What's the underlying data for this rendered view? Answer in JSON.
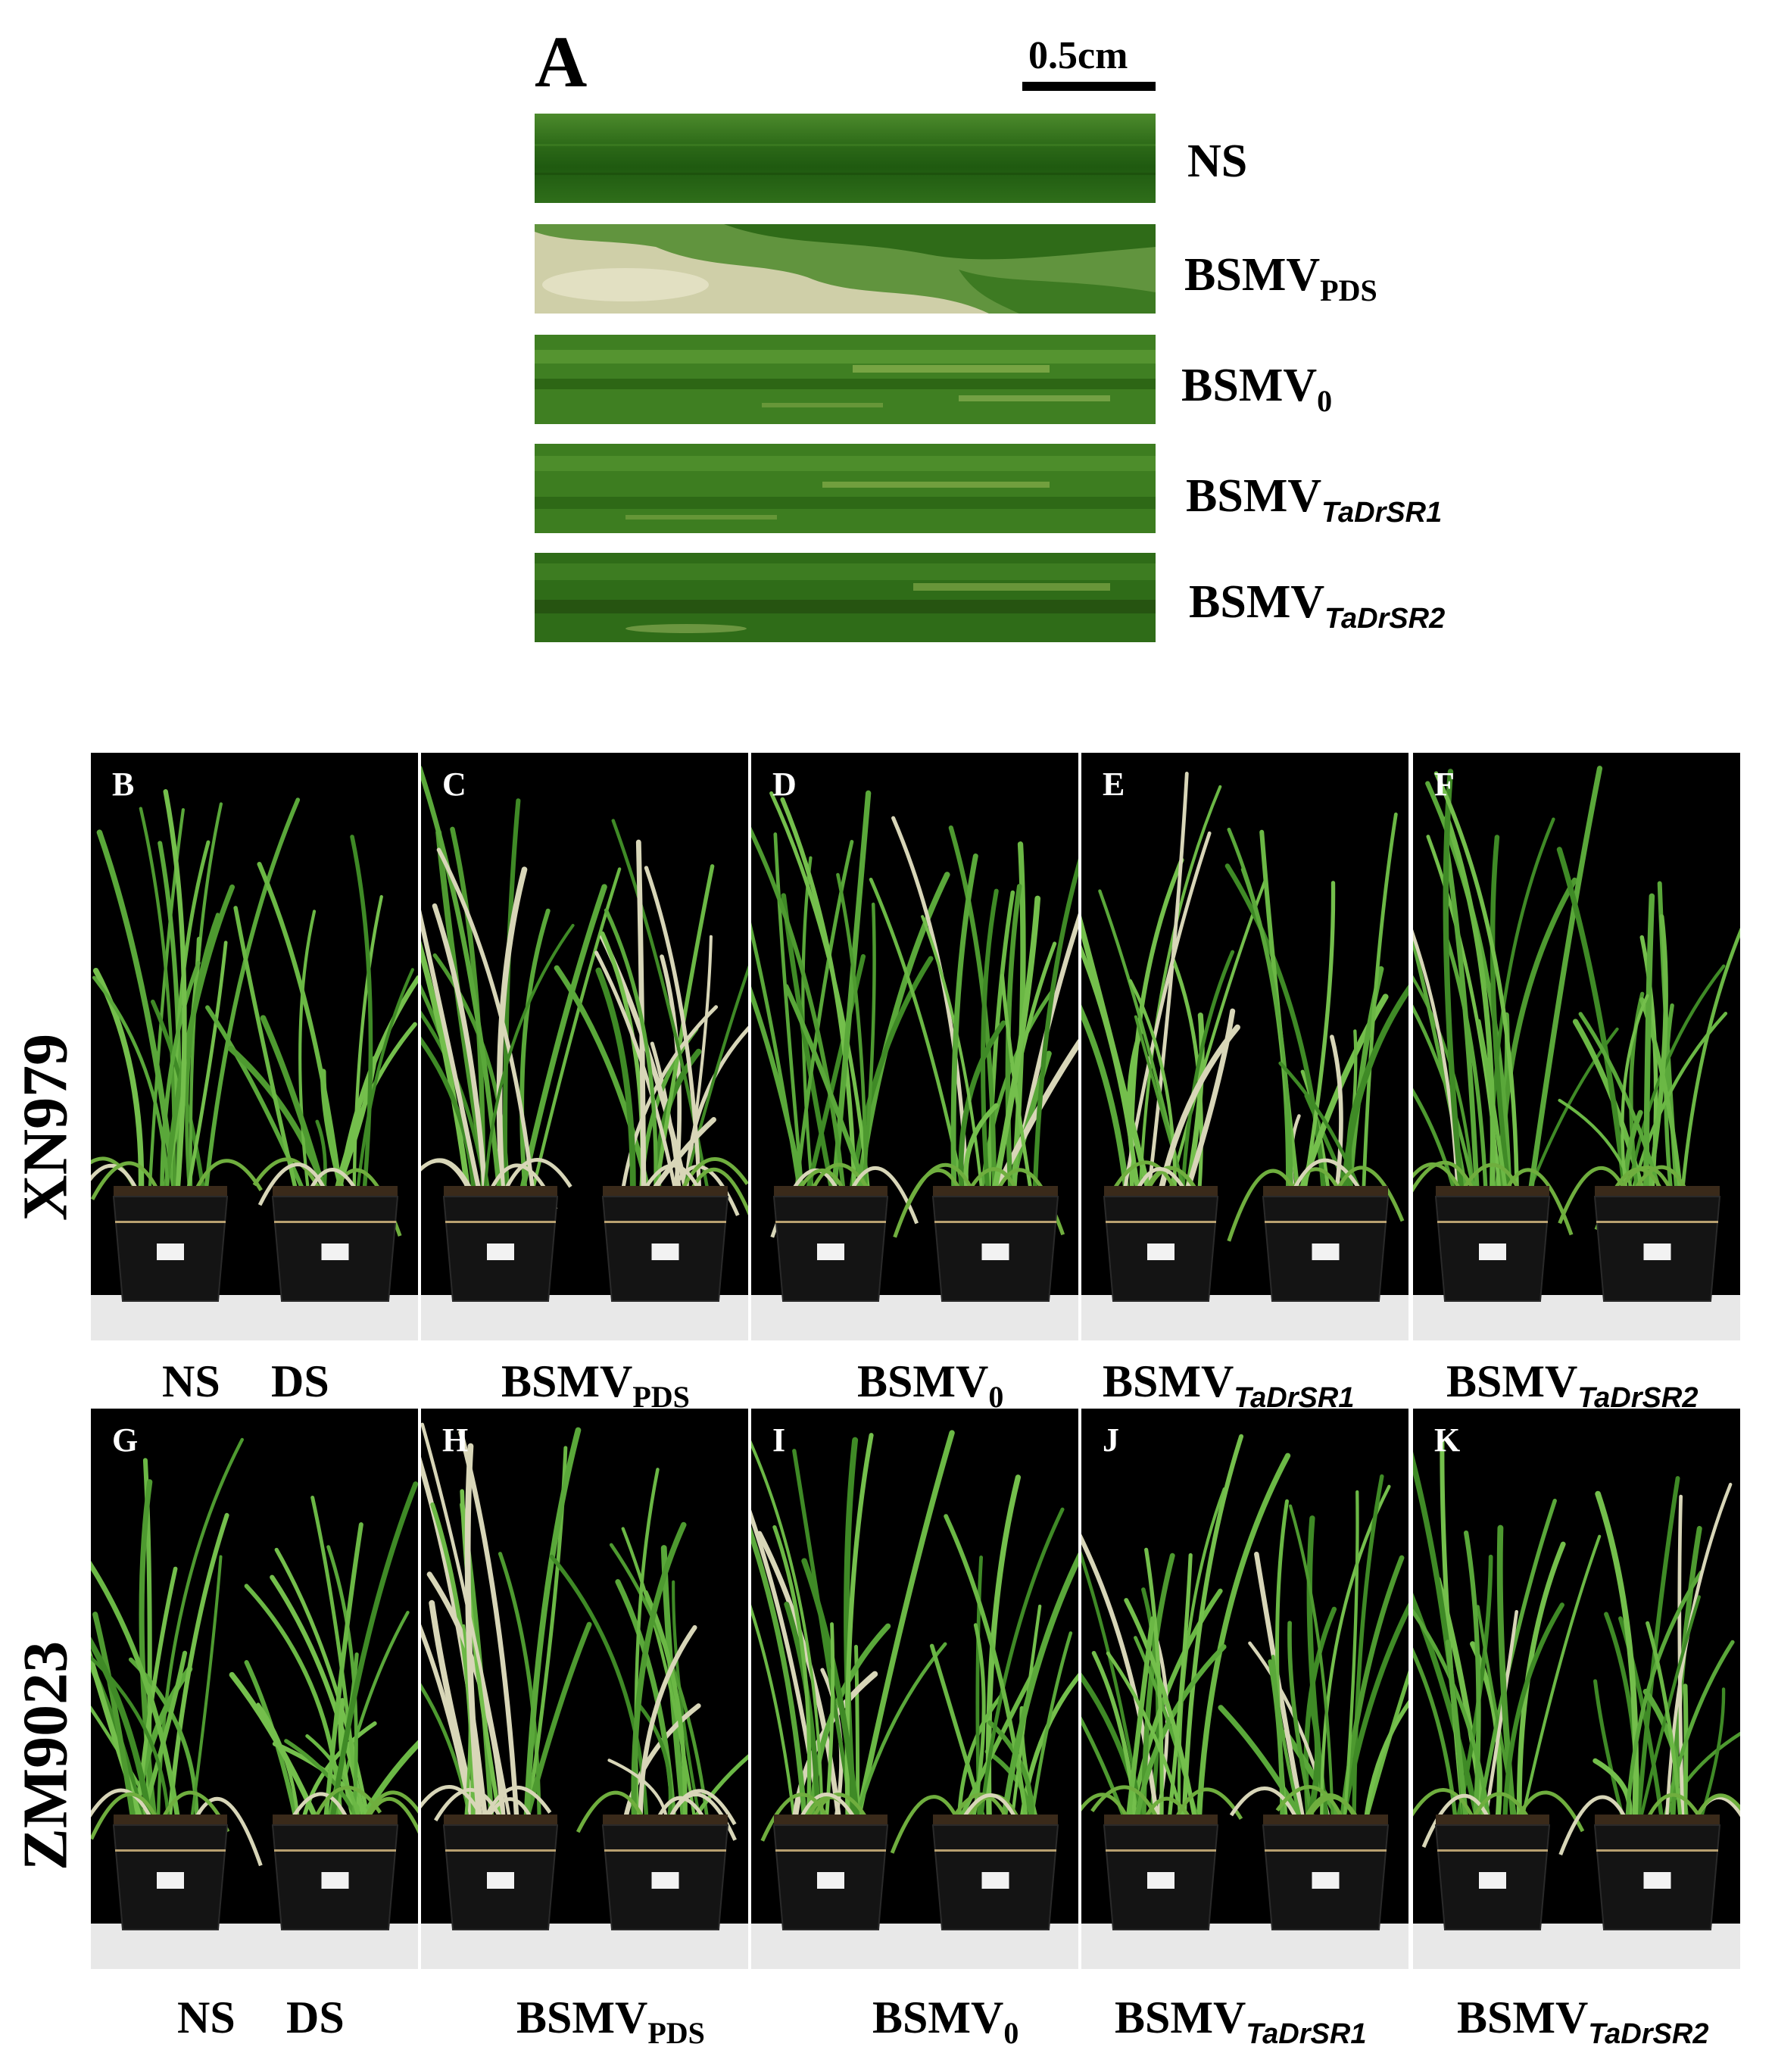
{
  "figure": {
    "panel_a": {
      "letter": "A",
      "scale_bar_label": "0.5cm",
      "leaves": [
        {
          "label_main": "NS",
          "label_sub": "",
          "sub_italic": false,
          "symptom": "none"
        },
        {
          "label_main": "BSMV",
          "label_sub": "PDS",
          "sub_italic": false,
          "symptom": "photobleaching"
        },
        {
          "label_main": "BSMV",
          "label_sub": "0",
          "sub_italic": false,
          "symptom": "mild mosaic"
        },
        {
          "label_main": "BSMV",
          "label_sub": "TaDrSR1",
          "sub_italic": true,
          "symptom": "mild mosaic"
        },
        {
          "label_main": "BSMV",
          "label_sub": "TaDrSR2",
          "sub_italic": true,
          "symptom": "mild mosaic"
        }
      ]
    },
    "rows": [
      {
        "row_label": "XN979",
        "panels": [
          {
            "letter": "B"
          },
          {
            "letter": "C"
          },
          {
            "letter": "D"
          },
          {
            "letter": "E"
          },
          {
            "letter": "F"
          }
        ]
      },
      {
        "row_label": "ZM9023",
        "panels": [
          {
            "letter": "G"
          },
          {
            "letter": "H"
          },
          {
            "letter": "I"
          },
          {
            "letter": "J"
          },
          {
            "letter": "K"
          }
        ]
      }
    ],
    "conditions": [
      {
        "ns": "NS",
        "ds": "DS"
      },
      {
        "main": "BSMV",
        "sub": "PDS",
        "sub_italic": false
      },
      {
        "main": "BSMV",
        "sub": "0",
        "sub_italic": false
      },
      {
        "main": "BSMV",
        "sub": "TaDrSR1",
        "sub_italic": true
      },
      {
        "main": "BSMV",
        "sub": "TaDrSR2",
        "sub_italic": true
      }
    ],
    "colors": {
      "leaf_green": "#2f6b1a",
      "leaf_dark": "#1f4f10",
      "bleach": "#d8d6b8",
      "plant_green": "#5aa83a",
      "pot_black": "#141414",
      "background": "#000000"
    }
  }
}
